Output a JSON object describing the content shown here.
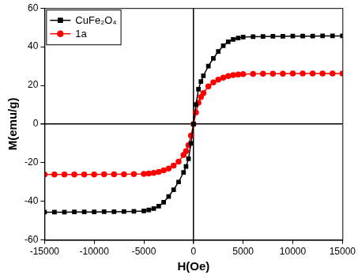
{
  "chart_data": {
    "type": "scatter",
    "x_label": "H(Oe)",
    "y_label": "M(emu/g)",
    "x": [
      -15000,
      -14000,
      -13000,
      -12000,
      -11000,
      -10000,
      -9000,
      -8000,
      -7000,
      -6000,
      -5000,
      -4500,
      -4000,
      -3500,
      -3000,
      -2500,
      -2000,
      -1500,
      -1000,
      -750,
      -500,
      -250,
      0,
      250,
      500,
      750,
      1000,
      1500,
      2000,
      2500,
      3000,
      3500,
      4000,
      4500,
      5000,
      6000,
      7000,
      8000,
      9000,
      10000,
      11000,
      12000,
      13000,
      14000,
      15000
    ],
    "series": [
      {
        "name": "CuFe₂O₄",
        "color": "#000000",
        "marker": "square",
        "line_style": "solid",
        "values": [
          -45.6,
          -45.6,
          -45.6,
          -45.5,
          -45.5,
          -45.5,
          -45.4,
          -45.4,
          -45.3,
          -45.2,
          -45,
          -44.5,
          -43.8,
          -42.5,
          -40.5,
          -37.5,
          -34,
          -30,
          -25,
          -22,
          -18,
          -10,
          0,
          10,
          18,
          22,
          25,
          30,
          34,
          37.5,
          40.5,
          42.5,
          43.8,
          44.5,
          45,
          45.2,
          45.3,
          45.4,
          45.4,
          45.5,
          45.5,
          45.5,
          45.6,
          45.6,
          45.6
        ]
      },
      {
        "name": "1a",
        "color": "#ff0000",
        "marker": "circle",
        "line_style": "solid",
        "values": [
          -26.1,
          -26.1,
          -26.1,
          -26.1,
          -26.1,
          -26.1,
          -26,
          -26,
          -26,
          -25.9,
          -25.8,
          -25.6,
          -25.3,
          -24.8,
          -24,
          -23,
          -21.5,
          -19.5,
          -16,
          -14,
          -11,
          -6,
          0,
          6,
          11,
          14,
          16,
          19.5,
          21.5,
          23,
          24,
          24.8,
          25.3,
          25.6,
          25.8,
          25.9,
          26,
          26,
          26,
          26.1,
          26.1,
          26.1,
          26.1,
          26.1,
          26.1
        ]
      }
    ],
    "xlim": [
      -15000,
      15000
    ],
    "xticks": [
      -15000,
      -10000,
      -5000,
      0,
      5000,
      10000,
      15000
    ],
    "ylim": [
      -60,
      60
    ],
    "yticks": [
      -60,
      -40,
      -20,
      0,
      20,
      40,
      60
    ],
    "grid": false,
    "legend": "top-left"
  }
}
